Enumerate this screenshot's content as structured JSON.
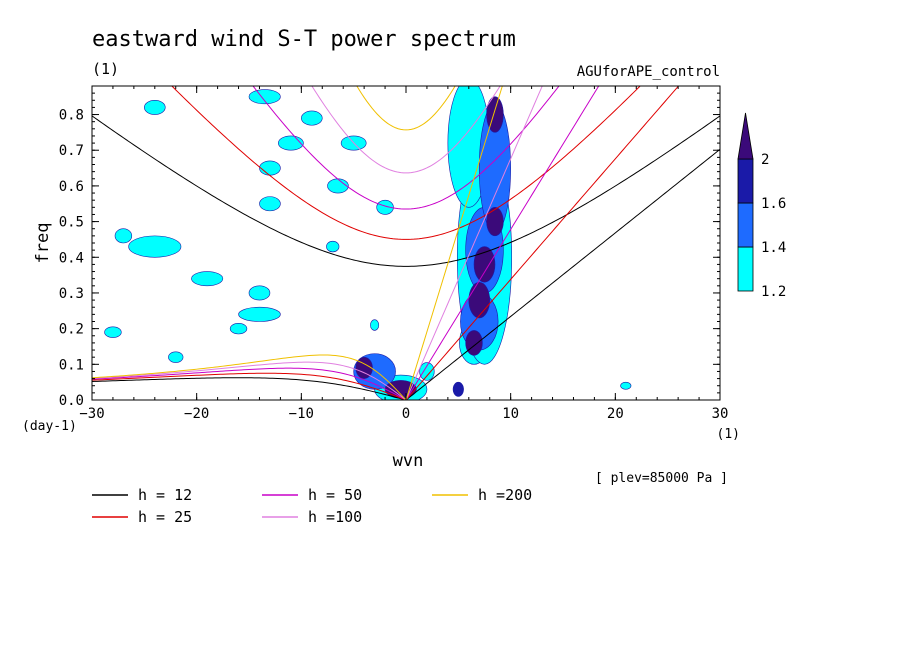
{
  "title": "eastward wind S-T power spectrum",
  "title_unit": "(1)",
  "experiment": "AGUforAPE_control",
  "level_note": "[ plev=85000 Pa ]",
  "chart_data": {
    "type": "contour",
    "xlabel": "wvn",
    "xunit": "(1)",
    "ylabel": "freq",
    "yunit": "(day-1)",
    "xlim": [
      -30,
      30
    ],
    "ylim": [
      0,
      0.88
    ],
    "xticks": [
      -30,
      -20,
      -10,
      0,
      10,
      20,
      30
    ],
    "yticks": [
      0.0,
      0.1,
      0.2,
      0.3,
      0.4,
      0.5,
      0.6,
      0.7,
      0.8
    ],
    "colorbar": {
      "levels": [
        1.2,
        1.4,
        1.6,
        2
      ],
      "colors": [
        "#00ffff",
        "#1e6bff",
        "#1a1aa8",
        "#3b0a7a"
      ],
      "labels": [
        "1.2",
        "1.4",
        "1.6",
        "2"
      ]
    },
    "dispersion_curves": [
      {
        "name": "h = 12",
        "h": 12,
        "color": "#000000"
      },
      {
        "name": "h = 25",
        "h": 25,
        "color": "#e00000"
      },
      {
        "name": "h = 50",
        "h": 50,
        "color": "#c800c8"
      },
      {
        "name": "h =100",
        "h": 100,
        "color": "#e080e0"
      },
      {
        "name": "h =200",
        "h": 200,
        "color": "#f0c000"
      }
    ],
    "blobs": [
      {
        "x": 6.5,
        "y": 0.16,
        "rx": 0.8,
        "ry": 0.035,
        "level": 3
      },
      {
        "x": 7.0,
        "y": 0.28,
        "rx": 1.0,
        "ry": 0.05,
        "level": 3
      },
      {
        "x": 7.5,
        "y": 0.38,
        "rx": 1.0,
        "ry": 0.05,
        "level": 3
      },
      {
        "x": 8.5,
        "y": 0.5,
        "rx": 0.8,
        "ry": 0.04,
        "level": 3
      },
      {
        "x": 8.5,
        "y": 0.8,
        "rx": 0.8,
        "ry": 0.05,
        "level": 3
      },
      {
        "x": -0.5,
        "y": 0.03,
        "rx": 1.5,
        "ry": 0.025,
        "level": 3
      },
      {
        "x": -4.0,
        "y": 0.09,
        "rx": 0.8,
        "ry": 0.03,
        "level": 3
      },
      {
        "x": 5.0,
        "y": 0.03,
        "rx": 0.5,
        "ry": 0.02,
        "level": 2
      },
      {
        "x": 7.0,
        "y": 0.22,
        "rx": 1.8,
        "ry": 0.08,
        "level": 1
      },
      {
        "x": 7.5,
        "y": 0.42,
        "rx": 1.8,
        "ry": 0.12,
        "level": 1
      },
      {
        "x": 8.5,
        "y": 0.65,
        "rx": 1.5,
        "ry": 0.18,
        "level": 1
      },
      {
        "x": 6.5,
        "y": 0.16,
        "rx": 1.4,
        "ry": 0.06,
        "level": 0
      },
      {
        "x": 7.5,
        "y": 0.4,
        "rx": 2.6,
        "ry": 0.3,
        "level": 0
      },
      {
        "x": 6.0,
        "y": 0.72,
        "rx": 2.0,
        "ry": 0.18,
        "level": 0
      },
      {
        "x": -3.0,
        "y": 0.08,
        "rx": 2.0,
        "ry": 0.05,
        "level": 1
      },
      {
        "x": -0.5,
        "y": 0.03,
        "rx": 2.5,
        "ry": 0.04,
        "level": 0
      },
      {
        "x": -24,
        "y": 0.43,
        "rx": 2.5,
        "ry": 0.03,
        "level": 0
      },
      {
        "x": -19,
        "y": 0.34,
        "rx": 1.5,
        "ry": 0.02,
        "level": 0
      },
      {
        "x": -27,
        "y": 0.46,
        "rx": 0.8,
        "ry": 0.02,
        "level": 0
      },
      {
        "x": -14,
        "y": 0.24,
        "rx": 2.0,
        "ry": 0.02,
        "level": 0
      },
      {
        "x": -16,
        "y": 0.2,
        "rx": 0.8,
        "ry": 0.015,
        "level": 0
      },
      {
        "x": -13,
        "y": 0.55,
        "rx": 1.0,
        "ry": 0.02,
        "level": 0
      },
      {
        "x": -11,
        "y": 0.72,
        "rx": 1.2,
        "ry": 0.02,
        "level": 0
      },
      {
        "x": -13.5,
        "y": 0.85,
        "rx": 1.5,
        "ry": 0.02,
        "level": 0
      },
      {
        "x": -14,
        "y": 0.3,
        "rx": 1.0,
        "ry": 0.02,
        "level": 0
      },
      {
        "x": -22,
        "y": 0.12,
        "rx": 0.7,
        "ry": 0.015,
        "level": 0
      },
      {
        "x": -28,
        "y": 0.19,
        "rx": 0.8,
        "ry": 0.015,
        "level": 0
      },
      {
        "x": -24,
        "y": 0.82,
        "rx": 1.0,
        "ry": 0.02,
        "level": 0
      },
      {
        "x": -6.5,
        "y": 0.6,
        "rx": 1.0,
        "ry": 0.02,
        "level": 0
      },
      {
        "x": -5,
        "y": 0.72,
        "rx": 1.2,
        "ry": 0.02,
        "level": 0
      },
      {
        "x": -13,
        "y": 0.65,
        "rx": 1.0,
        "ry": 0.02,
        "level": 0
      },
      {
        "x": -3,
        "y": 0.21,
        "rx": 0.4,
        "ry": 0.015,
        "level": 0
      },
      {
        "x": 2,
        "y": 0.08,
        "rx": 0.7,
        "ry": 0.025,
        "level": 0
      },
      {
        "x": 21,
        "y": 0.04,
        "rx": 0.5,
        "ry": 0.01,
        "level": 0
      },
      {
        "x": -9,
        "y": 0.79,
        "rx": 1.0,
        "ry": 0.02,
        "level": 0
      },
      {
        "x": -2,
        "y": 0.54,
        "rx": 0.8,
        "ry": 0.02,
        "level": 0
      },
      {
        "x": -7,
        "y": 0.43,
        "rx": 0.6,
        "ry": 0.015,
        "level": 0
      }
    ]
  }
}
